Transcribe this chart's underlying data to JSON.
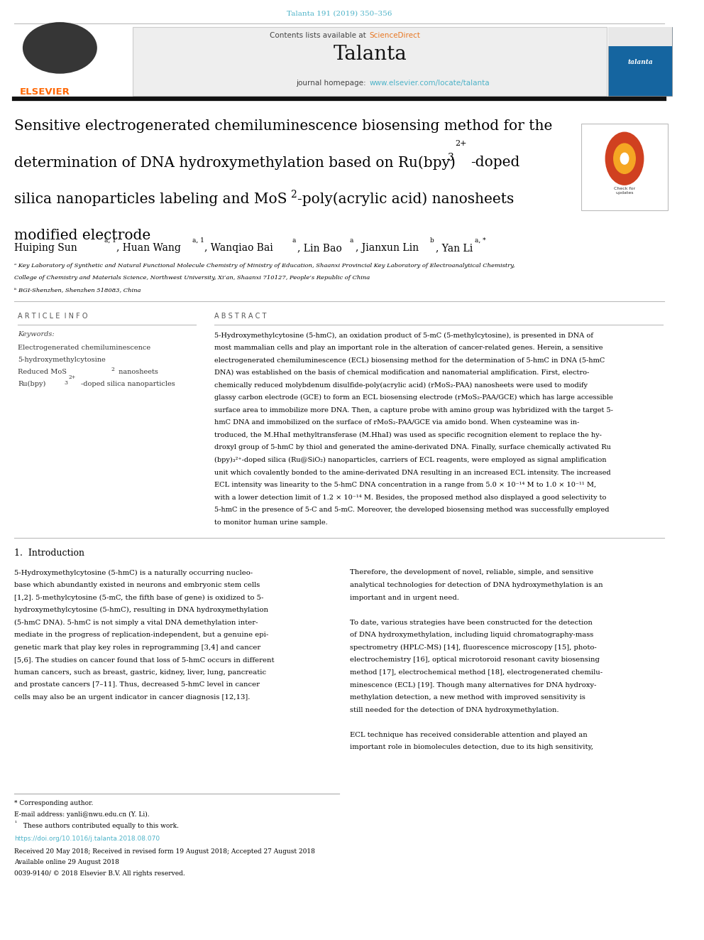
{
  "page_bg": "#ffffff",
  "top_journal_ref": "Talanta 191 (2019) 350–356",
  "top_journal_ref_color": "#4db3c8",
  "header_bg": "#eeeeee",
  "journal_name": "Talanta",
  "journal_homepage_text": "journal homepage:",
  "journal_homepage_url": "www.elsevier.com/locate/talanta",
  "journal_homepage_url_color": "#4db3c8",
  "sciencedirect_color": "#e87722",
  "divider_color": "#000000",
  "article_title_line1": "Sensitive electrogenerated chemiluminescence biosensing method for the",
  "article_title_line2_pre": "determination of DNA hydroxymethylation based on Ru(bpy)",
  "article_title_sub3": "3",
  "article_title_sup2plus": "2+",
  "article_title_line2_post": "-doped",
  "article_title_line3_pre": "silica nanoparticles labeling and MoS",
  "article_title_sub2": "2",
  "article_title_line3_post": "-poly(acrylic acid) nanosheets",
  "article_title_line4": "modified electrode",
  "article_title_color": "#000000",
  "affiliation_a": "ᵃ Key Laboratory of Synthetic and Natural Functional Molecule Chemistry of Ministry of Education, Shaanxi Provincial Key Laboratory of Electroanalytical Chemistry,",
  "affiliation_a2": "College of Chemistry and Materials Science, Northwest University, Xi’an, Shaanxi 710127, People’s Republic of China",
  "affiliation_b": "ᵇ BGI-Shenzhen, Shenzhen 518083, China",
  "article_info_header": "A R T I C L E  I N F O",
  "abstract_header": "A B S T R A C T",
  "keywords_label": "Keywords:",
  "keyword1": "Electrogenerated chemiluminescence",
  "keyword2": "5-hydroxymethylcytosine",
  "keyword3_pre": "Reduced MoS",
  "keyword3_post": " nanosheets",
  "keyword4_pre": "Ru(bpy)",
  "keyword4_post": "-doped silica nanoparticles",
  "abstract_lines": [
    "5-Hydroxymethylcytosine (5-hmC), an oxidation product of 5-mC (5-methylcytosine), is presented in DNA of",
    "most mammalian cells and play an important role in the alteration of cancer-related genes. Herein, a sensitive",
    "electrogenerated chemiluminescence (ECL) biosensing method for the determination of 5-hmC in DNA (5-hmC",
    "DNA) was established on the basis of chemical modification and nanomaterial amplification. First, electro-",
    "chemically reduced molybdenum disulfide-poly(acrylic acid) (rMoS₂-PAA) nanosheets were used to modify",
    "glassy carbon electrode (GCE) to form an ECL biosensing electrode (rMoS₂-PAA/GCE) which has large accessible",
    "surface area to immobilize more DNA. Then, a capture probe with amino group was hybridized with the target 5-",
    "hmC DNA and immobilized on the surface of rMoS₂-PAA/GCE via amido bond. When cysteamine was in-",
    "troduced, the M.HhaI methyltransferase (M.HhaI) was used as specific recognition element to replace the hy-",
    "droxyl group of 5-hmC by thiol and generated the amine-derivated DNA. Finally, surface chemically activated Ru",
    "(bpy)₃²⁺-doped silica (Ru@SiO₂) nanoparticles, carriers of ECL reagents, were employed as signal amplification",
    "unit which covalently bonded to the amine-derivated DNA resulting in an increased ECL intensity. The increased",
    "ECL intensity was linearity to the 5-hmC DNA concentration in a range from 5.0 × 10⁻¹⁴ M to 1.0 × 10⁻¹¹ M,",
    "with a lower detection limit of 1.2 × 10⁻¹⁴ M. Besides, the proposed method also displayed a good selectivity to",
    "5-hmC in the presence of 5-C and 5-mC. Moreover, the developed biosensing method was successfully employed",
    "to monitor human urine sample."
  ],
  "introduction_header": "1.  Introduction",
  "intro_left": [
    "5-Hydroxymethylcytosine (5-hmC) is a naturally occurring nucleo-",
    "base which abundantly existed in neurons and embryonic stem cells",
    "[1,2]. 5-methylcytosine (5-mC, the fifth base of gene) is oxidized to 5-",
    "hydroxymethylcytosine (5-hmC), resulting in DNA hydroxymethylation",
    "(5-hmC DNA). 5-hmC is not simply a vital DNA demethylation inter-",
    "mediate in the progress of replication-independent, but a genuine epi-",
    "genetic mark that play key roles in reprogramming [3,4] and cancer",
    "[5,6]. The studies on cancer found that loss of 5-hmC occurs in different",
    "human cancers, such as breast, gastric, kidney, liver, lung, pancreatic",
    "and prostate cancers [7–11]. Thus, decreased 5-hmC level in cancer",
    "cells may also be an urgent indicator in cancer diagnosis [12,13]."
  ],
  "intro_right": [
    "Therefore, the development of novel, reliable, simple, and sensitive",
    "analytical technologies for detection of DNA hydroxymethylation is an",
    "important and in urgent need.",
    "",
    "To date, various strategies have been constructed for the detection",
    "of DNA hydroxymethylation, including liquid chromatography-mass",
    "spectrometry (HPLC-MS) [14], fluorescence microscopy [15], photo-",
    "electrochemistry [16], optical microtoroid resonant cavity biosensing",
    "method [17], electrochemical method [18], electrogenerated chemilu-",
    "minescence (ECL) [19]. Though many alternatives for DNA hydroxy-",
    "methylation detection, a new method with improved sensitivity is",
    "still needed for the detection of DNA hydroxymethylation.",
    "",
    "ECL technique has received considerable attention and played an",
    "important role in biomolecules detection, due to its high sensitivity,"
  ],
  "footer_corresponding": "* Corresponding author.",
  "footer_email": "E-mail address: yanli@nwu.edu.cn (Y. Li).",
  "footer_contrib": " These authors contributed equally to this work.",
  "footer_doi": "https://doi.org/10.1016/j.talanta.2018.08.070",
  "footer_received": "Received 20 May 2018; Received in revised form 19 August 2018; Accepted 27 August 2018",
  "footer_online": "Available online 29 August 2018",
  "footer_issn": "0039-9140/ © 2018 Elsevier B.V. All rights reserved.",
  "elsevier_orange": "#ff6600",
  "cover_blue": "#1565a0"
}
